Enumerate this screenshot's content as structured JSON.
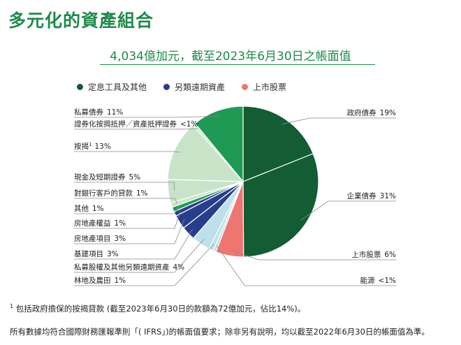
{
  "page_title": "多元化的資產組合",
  "footnote": {
    "marker": "1",
    "text": "包括政府擔保的按揭貸款 (截至2023年6月30日的款額為72億加元，佔比14%)。"
  },
  "footer_note": "所有數據均符合國際財務匯報準則「( IFRS」)的帳面值要求；除非另有說明，均以截至2022年6月30日的帳面值為準。",
  "colors": {
    "dark_green": "#145c33",
    "green": "#1f9a54",
    "light_green": "#c7e4c9",
    "navy": "#283d8c",
    "light_blue": "#bfe0ea",
    "coral": "#ee7670"
  },
  "chart_data": {
    "type": "pie",
    "title": "4,034億加元，截至2023年6月30日之帳面值",
    "legend": [
      {
        "label": "定息工具及其他",
        "color": "#145c33"
      },
      {
        "label": "另類遠期資產",
        "color": "#283d8c"
      },
      {
        "label": "上市股票",
        "color": "#ee7670"
      }
    ],
    "slices": [
      {
        "label": "政府債券",
        "value": 19,
        "value_label": "19%",
        "color": "#145c33"
      },
      {
        "label": "企業債券",
        "value": 31,
        "value_label": "31%",
        "color": "#145c33"
      },
      {
        "label": "上市股票",
        "value": 6,
        "value_label": "6%",
        "color": "#ee7670"
      },
      {
        "label": "能源",
        "value": 0.6,
        "value_label": "<1%",
        "color": "#bfe0ea"
      },
      {
        "label": "林地及農田",
        "value": 1,
        "value_label": "1%",
        "color": "#bfe0ea"
      },
      {
        "label": "私募股權及其他另類遠期資產",
        "value": 4,
        "value_label": "4%",
        "color": "#bfe0ea"
      },
      {
        "label": "基建項目",
        "value": 3,
        "value_label": "3%",
        "color": "#283d8c"
      },
      {
        "label": "房地產項目",
        "value": 3,
        "value_label": "3%",
        "color": "#283d8c"
      },
      {
        "label": "房地產權益",
        "value": 1,
        "value_label": "1%",
        "color": "#283d8c"
      },
      {
        "label": "其他",
        "value": 1,
        "value_label": "1%",
        "color": "#1f9a54"
      },
      {
        "label": "對銀行客戶的貸款",
        "value": 1,
        "value_label": "1%",
        "color": "#c7e4c9"
      },
      {
        "label": "現金及短期證券",
        "value": 5,
        "value_label": "5%",
        "color": "#c7e4c9"
      },
      {
        "label": "按揭",
        "label_sup": "1",
        "value": 13,
        "value_label": "13%",
        "color": "#c7e4c9"
      },
      {
        "label": "證券化按揭抵押／資產抵押證券",
        "value": 0.6,
        "value_label": "<1%",
        "color": "#c7e4c9"
      },
      {
        "label": "私募債券",
        "value": 11,
        "value_label": "11%",
        "color": "#1f9a54"
      }
    ]
  }
}
